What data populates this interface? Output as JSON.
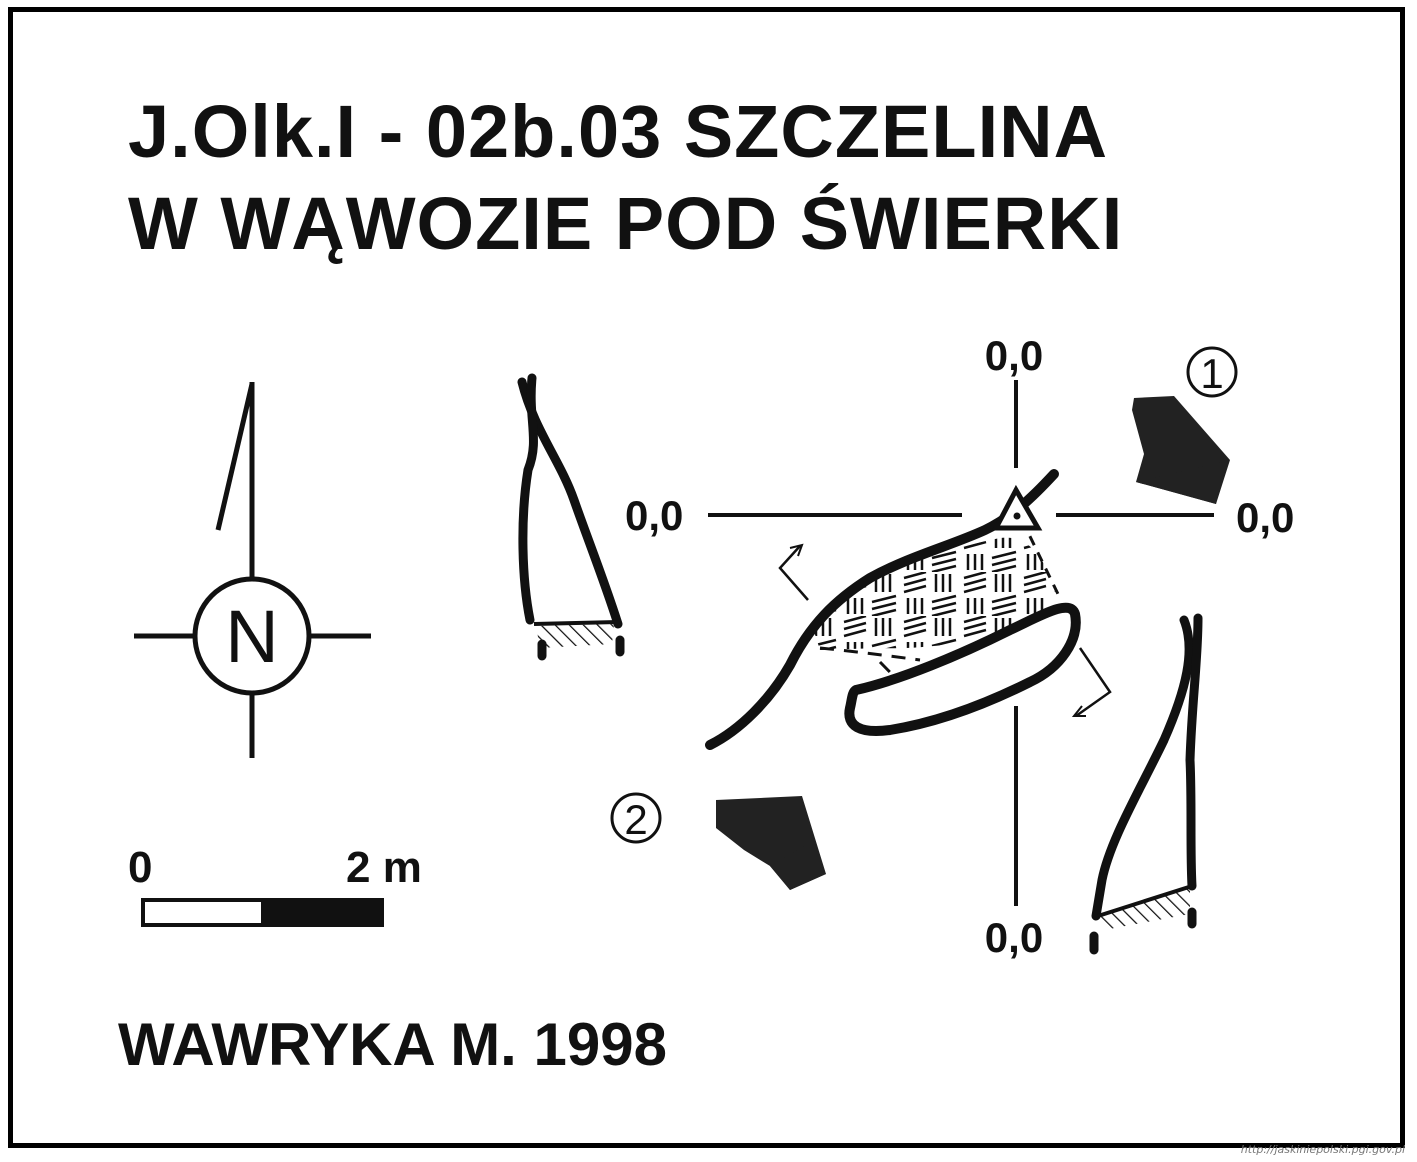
{
  "title": {
    "line1": "J.Olk.I - 02b.03  SZCZELINA",
    "line2": "W WĄWOZIE POD ŚWIERKI"
  },
  "north_arrow": {
    "letter": "N"
  },
  "scale_bar": {
    "start_label": "0",
    "end_label": "2 m"
  },
  "survey_point": {
    "top_label": "0,0",
    "left_label": "0,0",
    "right_label": "0,0",
    "bottom_label": "0,0"
  },
  "entrances": [
    {
      "number": "1"
    },
    {
      "number": "2"
    }
  ],
  "author": "WAWRYKA M. 1998",
  "watermark": "http://jaskiniepolski.pgi.gov.pl",
  "colors": {
    "ink": "#111111",
    "background": "#ffffff"
  }
}
